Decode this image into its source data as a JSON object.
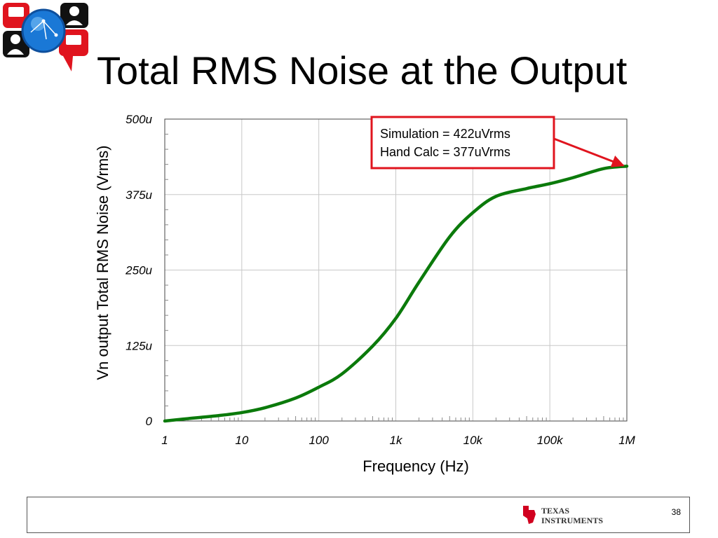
{
  "slide": {
    "title": "Total RMS Noise at the Output",
    "page_number": "38",
    "brand_logo_text": [
      "TEXAS",
      "INSTRUMENTS"
    ]
  },
  "colors": {
    "series": "#0b7a0b",
    "annotation": "#e0141e",
    "grid": "#c8c8c8"
  },
  "chart_data": {
    "type": "line",
    "xscale": "log",
    "xlabel": "Frequency (Hz)",
    "ylabel": "Vn output Total RMS Noise (Vrms)",
    "xlim": [
      1,
      1000000
    ],
    "ylim": [
      0,
      500
    ],
    "y_unit": "uVrms",
    "xticks": [
      1,
      10,
      100,
      1000,
      10000,
      100000,
      1000000
    ],
    "xtick_labels": [
      "1",
      "10",
      "100",
      "1k",
      "10k",
      "100k",
      "1M"
    ],
    "yticks": [
      0,
      125,
      250,
      375,
      500
    ],
    "ytick_labels": [
      "0",
      "125u",
      "250u",
      "375u",
      "500u"
    ],
    "grid": true,
    "legend": "none",
    "series": [
      {
        "x": [
          1,
          2,
          5,
          10,
          20,
          50,
          100,
          200,
          500,
          1000,
          2000,
          5000,
          10000,
          20000,
          50000,
          100000,
          200000,
          500000,
          1000000
        ],
        "values": [
          0,
          4,
          9,
          14,
          22,
          38,
          56,
          78,
          124,
          170,
          230,
          305,
          345,
          372,
          385,
          393,
          403,
          418,
          422
        ]
      }
    ],
    "annotations": [
      {
        "lines": [
          "Simulation = 422uVrms",
          "Hand Calc = 377uVrms"
        ],
        "arrow_to": {
          "x": 1000000,
          "y": 422
        }
      }
    ]
  }
}
